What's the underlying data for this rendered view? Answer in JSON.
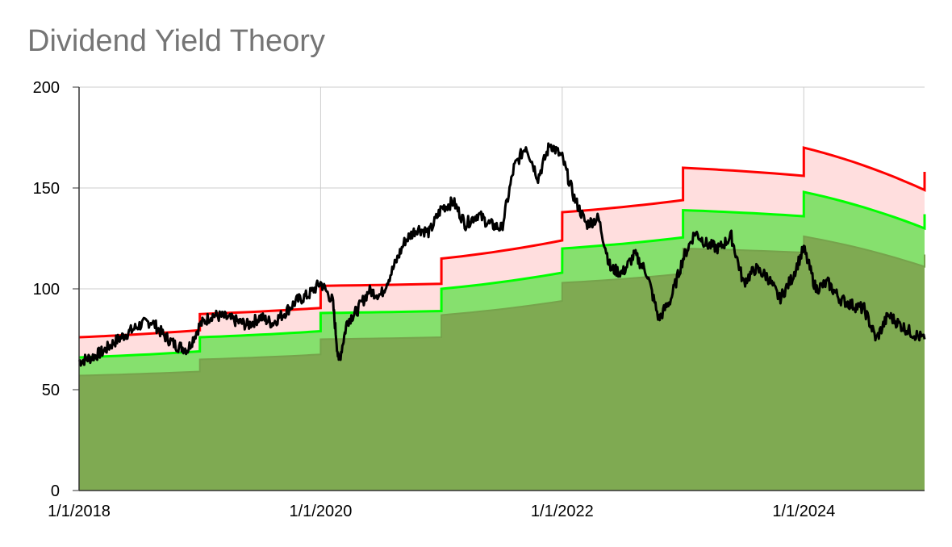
{
  "title": "Dividend Yield Theory",
  "chart_data": {
    "type": "area",
    "title": "Dividend Yield Theory",
    "xlabel": "",
    "ylabel": "",
    "x_range": [
      "1/1/2018",
      "1/1/2025"
    ],
    "ylim": [
      0,
      200
    ],
    "y_ticks": [
      0,
      50,
      100,
      150,
      200
    ],
    "x_ticks": [
      "1/1/2018",
      "1/1/2020",
      "1/1/2022",
      "1/1/2024"
    ],
    "grid": true,
    "legend": "none",
    "colors": {
      "price": "#000000",
      "upper": "#ff0000",
      "upper_fill": "#ffdede",
      "middle": "#00ff00",
      "middle_fill": "#86e06e",
      "lower_fill": "#7faa52"
    },
    "bands": {
      "years": [
        2018,
        2019,
        2020,
        2021,
        2022,
        2023,
        2024
      ],
      "upper": [
        [
          76,
          79.5
        ],
        [
          87.5,
          90.5
        ],
        [
          101.5,
          102.5
        ],
        [
          115,
          124
        ],
        [
          138,
          144
        ],
        [
          160,
          156
        ],
        [
          170,
          149
        ]
      ],
      "middle": [
        [
          66,
          69
        ],
        [
          76,
          79
        ],
        [
          88,
          89
        ],
        [
          100,
          108
        ],
        [
          120,
          125.5
        ],
        [
          139,
          136
        ],
        [
          148,
          130
        ]
      ],
      "lower": [
        [
          57,
          59
        ],
        [
          65,
          67.5
        ],
        [
          75,
          76
        ],
        [
          87,
          94
        ],
        [
          103,
          107.5
        ],
        [
          120,
          118
        ],
        [
          126,
          111
        ]
      ],
      "end_values": {
        "upper": 158,
        "middle": 137,
        "lower": 117
      }
    },
    "price": {
      "x": [
        2018.0,
        2018.1,
        2018.2,
        2018.3,
        2018.4,
        2018.5,
        2018.6,
        2018.7,
        2018.8,
        2018.9,
        2019.0,
        2019.1,
        2019.2,
        2019.3,
        2019.4,
        2019.5,
        2019.6,
        2019.7,
        2019.8,
        2019.9,
        2020.0,
        2020.1,
        2020.15,
        2020.22,
        2020.3,
        2020.4,
        2020.5,
        2020.6,
        2020.7,
        2020.8,
        2020.9,
        2021.0,
        2021.1,
        2021.2,
        2021.3,
        2021.4,
        2021.5,
        2021.6,
        2021.7,
        2021.8,
        2021.9,
        2022.0,
        2022.1,
        2022.2,
        2022.3,
        2022.4,
        2022.5,
        2022.6,
        2022.7,
        2022.8,
        2022.9,
        2023.0,
        2023.1,
        2023.2,
        2023.3,
        2023.4,
        2023.5,
        2023.6,
        2023.7,
        2023.8,
        2023.9,
        2024.0,
        2024.1,
        2024.2,
        2024.3,
        2024.4,
        2024.5,
        2024.6,
        2024.7,
        2024.8,
        2024.9,
        2025.0
      ],
      "y": [
        64,
        66,
        69,
        74,
        78,
        82,
        84,
        77,
        72,
        70,
        82,
        87,
        86,
        84,
        82,
        86,
        83,
        88,
        94,
        97,
        103,
        94,
        63,
        84,
        89,
        99,
        97,
        110,
        124,
        130,
        128,
        140,
        143,
        132,
        137,
        132,
        130,
        160,
        171,
        155,
        172,
        165,
        145,
        132,
        135,
        110,
        108,
        117,
        108,
        85,
        95,
        115,
        128,
        122,
        120,
        126,
        103,
        110,
        106,
        95,
        105,
        120,
        100,
        103,
        95,
        92,
        90,
        75,
        87,
        82,
        78,
        75
      ]
    }
  }
}
